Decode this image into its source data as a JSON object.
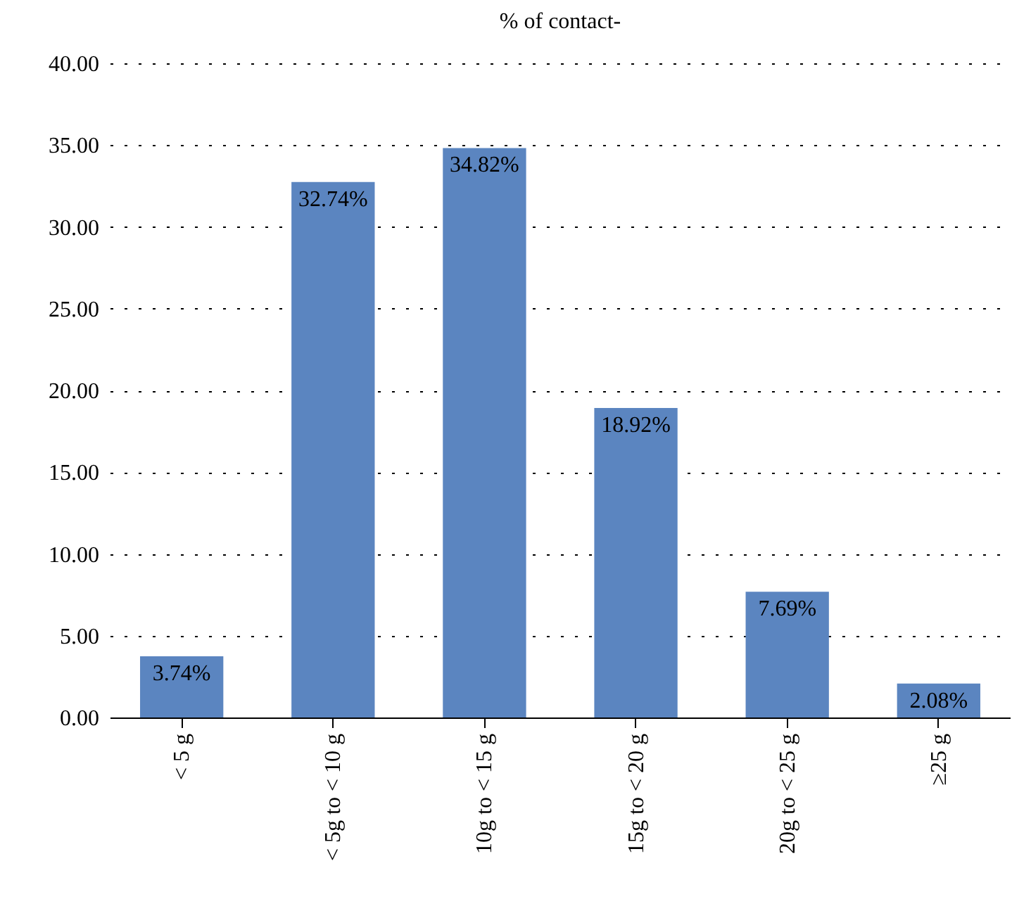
{
  "chart_data": {
    "type": "bar",
    "title": "% of contact-",
    "categories": [
      "< 5 g",
      "< 5g to < 10 g",
      "10g to < 15 g",
      "15g to < 20 g",
      "20g to < 25 g",
      "≥25 g"
    ],
    "values": [
      3.74,
      32.74,
      34.82,
      18.92,
      7.69,
      2.08
    ],
    "value_labels": [
      "3.74%",
      "32.74%",
      "34.82%",
      "18.92%",
      "7.69%",
      "2.08%"
    ],
    "color": "#5b85c0",
    "ylim": [
      0,
      40
    ],
    "yticks": [
      {
        "value": 0,
        "label": "0.00"
      },
      {
        "value": 5,
        "label": "5.00"
      },
      {
        "value": 10,
        "label": "10.00"
      },
      {
        "value": 15,
        "label": "15.00"
      },
      {
        "value": 20,
        "label": "20.00"
      },
      {
        "value": 25,
        "label": "25.00"
      },
      {
        "value": 30,
        "label": "30.00"
      },
      {
        "value": 35,
        "label": "35.00"
      },
      {
        "value": 40,
        "label": "40.00"
      }
    ],
    "grid": "y"
  }
}
